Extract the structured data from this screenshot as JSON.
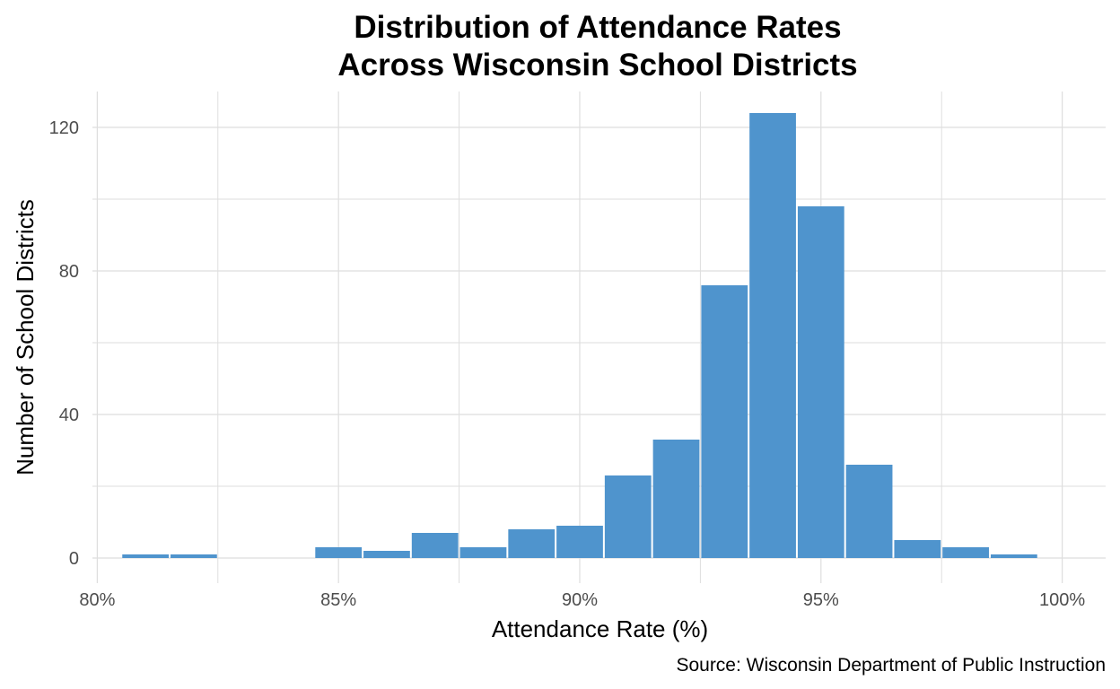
{
  "chart_data": {
    "type": "bar",
    "title": "Distribution of Attendance Rates",
    "subtitle": "Across Wisconsin School Districts",
    "xlabel": "Attendance Rate (%)",
    "ylabel": "Number of School Districts",
    "caption": "Source: Wisconsin Department of Public Instruction",
    "xlim": [
      79.9,
      100.9
    ],
    "ylim": [
      -7,
      130
    ],
    "x_ticks": [
      80,
      85,
      90,
      95,
      100
    ],
    "x_tick_labels": [
      "80%",
      "85%",
      "90%",
      "95%",
      "100%"
    ],
    "y_ticks": [
      0,
      40,
      80,
      120
    ],
    "y_tick_labels": [
      "0",
      "40",
      "80",
      "120"
    ],
    "grid": true,
    "bin_width": 1,
    "bins": [
      {
        "from": 80.5,
        "to": 81.5,
        "count": 1
      },
      {
        "from": 81.5,
        "to": 82.5,
        "count": 1
      },
      {
        "from": 84.5,
        "to": 85.5,
        "count": 3
      },
      {
        "from": 85.5,
        "to": 86.5,
        "count": 2
      },
      {
        "from": 86.5,
        "to": 87.5,
        "count": 7
      },
      {
        "from": 87.5,
        "to": 88.5,
        "count": 3
      },
      {
        "from": 88.5,
        "to": 89.5,
        "count": 8
      },
      {
        "from": 89.5,
        "to": 90.5,
        "count": 9
      },
      {
        "from": 90.5,
        "to": 91.5,
        "count": 23
      },
      {
        "from": 91.5,
        "to": 92.5,
        "count": 33
      },
      {
        "from": 92.5,
        "to": 93.5,
        "count": 76
      },
      {
        "from": 93.5,
        "to": 94.5,
        "count": 124
      },
      {
        "from": 94.5,
        "to": 95.5,
        "count": 98
      },
      {
        "from": 95.5,
        "to": 96.5,
        "count": 26
      },
      {
        "from": 96.5,
        "to": 97.5,
        "count": 5
      },
      {
        "from": 97.5,
        "to": 98.5,
        "count": 3
      },
      {
        "from": 98.5,
        "to": 99.5,
        "count": 1
      }
    ],
    "colors": {
      "bar": "#4f94cd",
      "grid": "#dedede"
    }
  }
}
